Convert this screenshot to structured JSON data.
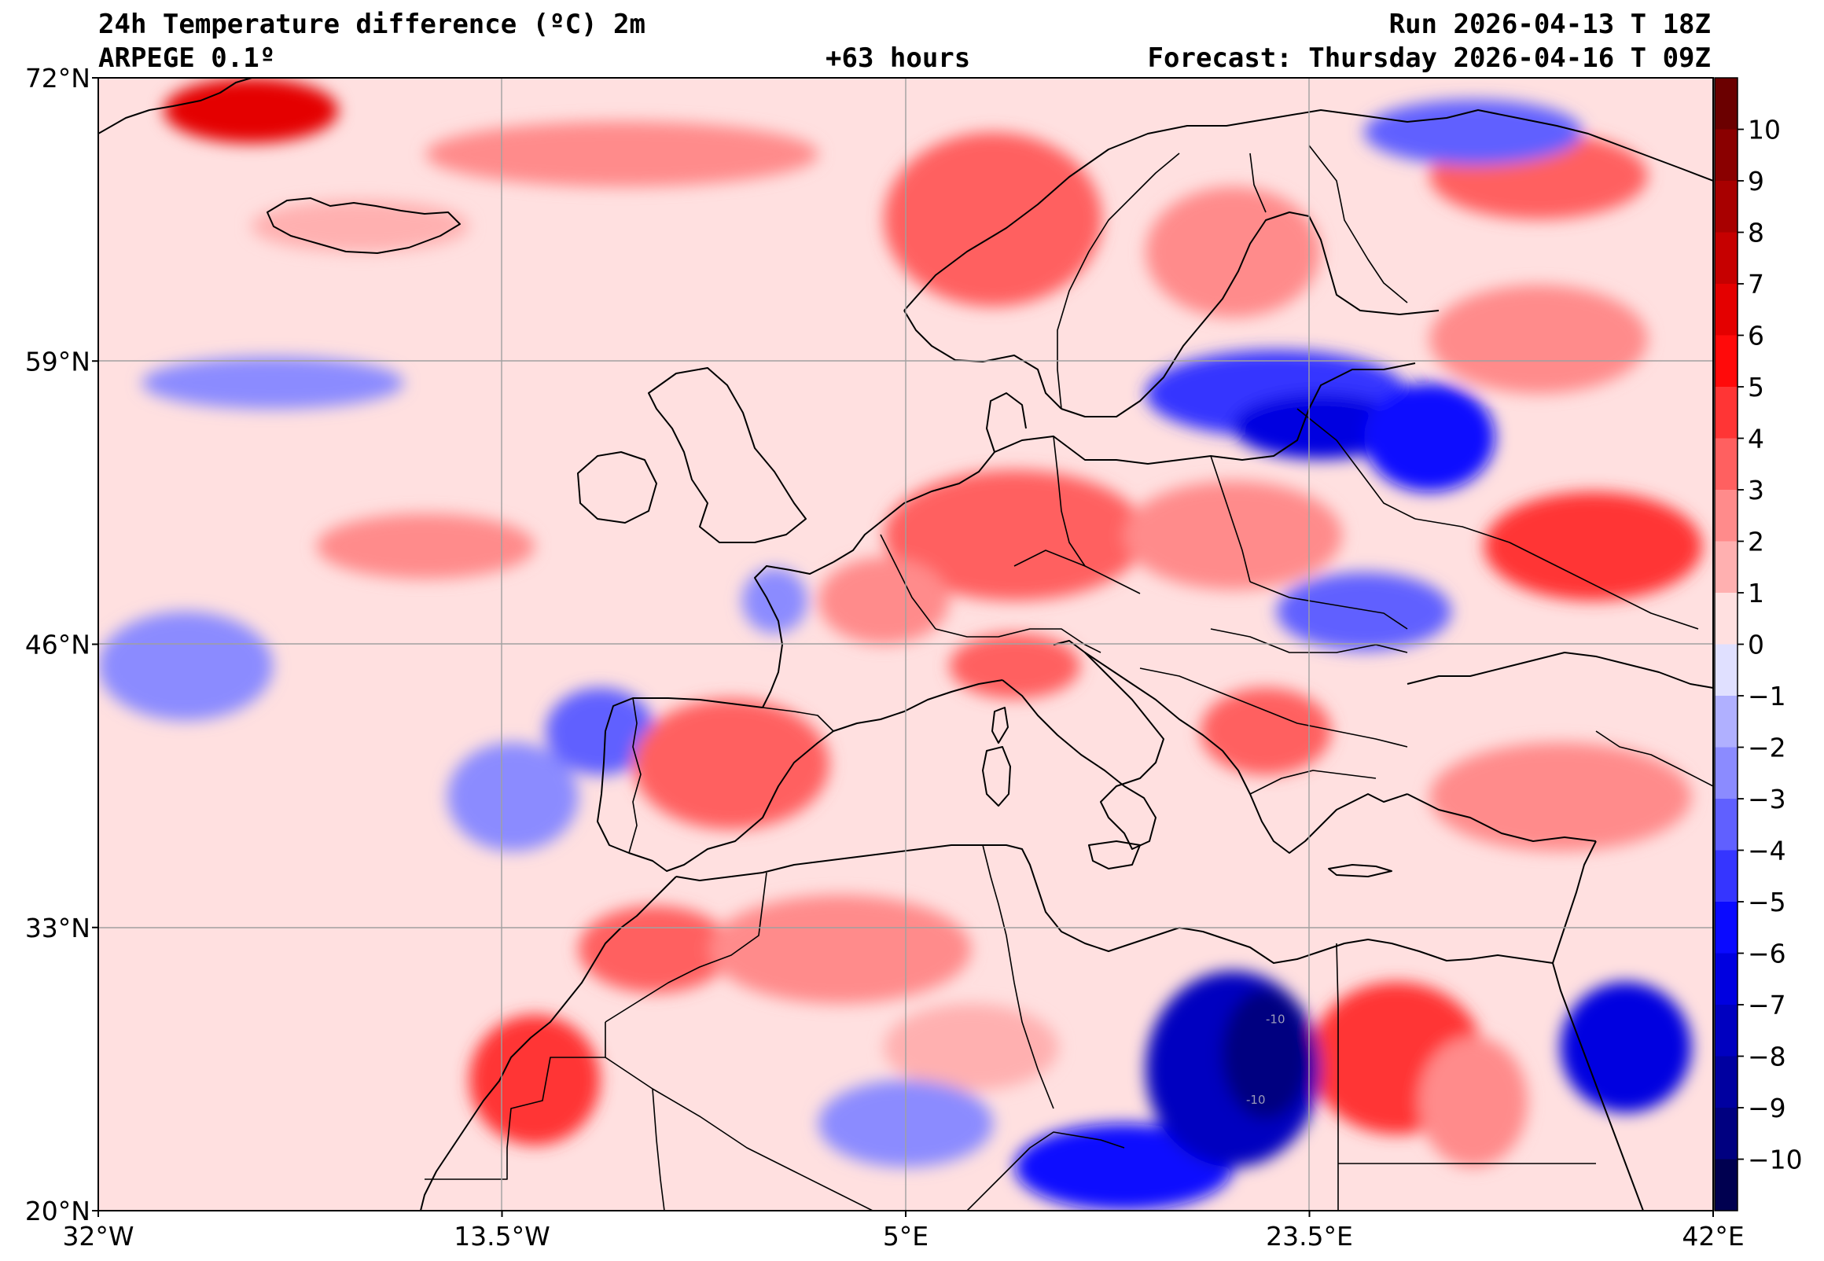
{
  "header": {
    "title": "24h Temperature difference (ºC) 2m",
    "model": "ARPEGE 0.1º",
    "lead_time": "+63 hours",
    "run": "Run 2026-04-13 T 18Z",
    "forecast": "Forecast: Thursday 2026-04-16 T 09Z"
  },
  "map": {
    "projection": "plate-carree",
    "lon_range": [
      -32,
      42
    ],
    "lat_range": [
      20,
      72
    ],
    "lat_ticks": [
      {
        "value": 72,
        "label": "72°N"
      },
      {
        "value": 59,
        "label": "59°N"
      },
      {
        "value": 46,
        "label": "46°N"
      },
      {
        "value": 33,
        "label": "33°N"
      },
      {
        "value": 20,
        "label": "20°N"
      }
    ],
    "lon_ticks": [
      {
        "value": -32,
        "label": "32°W"
      },
      {
        "value": -13.5,
        "label": "13.5°W"
      },
      {
        "value": 5,
        "label": "5°E"
      },
      {
        "value": 23.5,
        "label": "23.5°E"
      },
      {
        "value": 42,
        "label": "42°E"
      }
    ],
    "contour_labels": [
      {
        "text": "-10",
        "lon": 21.5,
        "lat": 28.6
      },
      {
        "text": "-10",
        "lon": 20.6,
        "lat": 24.9
      }
    ],
    "regions": [
      {
        "lon": -25,
        "lat": 70.5,
        "rx": 4,
        "ry": 1.5,
        "level": 6
      },
      {
        "lon": -20,
        "lat": 65.2,
        "rx": 5,
        "ry": 1.2,
        "level": 1
      },
      {
        "lon": -8,
        "lat": 68.5,
        "rx": 9,
        "ry": 1.5,
        "level": 2
      },
      {
        "lon": -24,
        "lat": 58,
        "rx": 6,
        "ry": 1.2,
        "level": -2
      },
      {
        "lon": -17,
        "lat": 50.5,
        "rx": 5,
        "ry": 1.5,
        "level": 2
      },
      {
        "lon": -28,
        "lat": 45,
        "rx": 4,
        "ry": 2.5,
        "level": -2
      },
      {
        "lon": -13,
        "lat": 39,
        "rx": 3,
        "ry": 2.5,
        "level": -2
      },
      {
        "lon": -9,
        "lat": 42,
        "rx": 2.5,
        "ry": 2,
        "level": -3
      },
      {
        "lon": 9,
        "lat": 65.5,
        "rx": 5,
        "ry": 4,
        "level": 3
      },
      {
        "lon": 20,
        "lat": 64,
        "rx": 4,
        "ry": 3,
        "level": 2
      },
      {
        "lon": 34,
        "lat": 67.5,
        "rx": 5,
        "ry": 2,
        "level": 3
      },
      {
        "lon": 31,
        "lat": 69.5,
        "rx": 5,
        "ry": 1.5,
        "level": -3
      },
      {
        "lon": 22,
        "lat": 57.5,
        "rx": 6,
        "ry": 2,
        "level": -4
      },
      {
        "lon": 24,
        "lat": 56,
        "rx": 4,
        "ry": 1.5,
        "level": -6
      },
      {
        "lon": 29,
        "lat": 55.5,
        "rx": 3,
        "ry": 2.5,
        "level": -5
      },
      {
        "lon": 34,
        "lat": 60,
        "rx": 5,
        "ry": 2.5,
        "level": 2
      },
      {
        "lon": 36.5,
        "lat": 50.5,
        "rx": 5,
        "ry": 2.5,
        "level": 4
      },
      {
        "lon": 10,
        "lat": 51,
        "rx": 6,
        "ry": 3,
        "level": 3
      },
      {
        "lon": 20,
        "lat": 51,
        "rx": 5,
        "ry": 2.5,
        "level": 2
      },
      {
        "lon": 26,
        "lat": 47.5,
        "rx": 4,
        "ry": 1.8,
        "level": -3
      },
      {
        "lon": 4,
        "lat": 48,
        "rx": 3,
        "ry": 2,
        "level": 2
      },
      {
        "lon": -1,
        "lat": 48,
        "rx": 1.5,
        "ry": 1.5,
        "level": -2
      },
      {
        "lon": -3,
        "lat": 40.5,
        "rx": 4.5,
        "ry": 3,
        "level": 3
      },
      {
        "lon": 10,
        "lat": 45,
        "rx": 3,
        "ry": 1.5,
        "level": 3
      },
      {
        "lon": 21.5,
        "lat": 42,
        "rx": 3,
        "ry": 2,
        "level": 3
      },
      {
        "lon": 35,
        "lat": 39,
        "rx": 6,
        "ry": 2.5,
        "level": 2
      },
      {
        "lon": -6.5,
        "lat": 32,
        "rx": 3.5,
        "ry": 2,
        "level": 3
      },
      {
        "lon": -12,
        "lat": 26,
        "rx": 3,
        "ry": 3,
        "level": 4
      },
      {
        "lon": 2,
        "lat": 32,
        "rx": 6,
        "ry": 2.5,
        "level": 2
      },
      {
        "lon": 8,
        "lat": 27.5,
        "rx": 4,
        "ry": 2,
        "level": 1
      },
      {
        "lon": 27.5,
        "lat": 27,
        "rx": 4,
        "ry": 3.5,
        "level": 4
      },
      {
        "lon": 31,
        "lat": 25,
        "rx": 2.5,
        "ry": 3,
        "level": 2
      },
      {
        "lon": 38,
        "lat": 27.5,
        "rx": 3,
        "ry": 3,
        "level": -6
      },
      {
        "lon": 5,
        "lat": 24,
        "rx": 4,
        "ry": 2,
        "level": -2
      },
      {
        "lon": 15,
        "lat": 22,
        "rx": 5,
        "ry": 2,
        "level": -5
      },
      {
        "lon": 20,
        "lat": 26.5,
        "rx": 4,
        "ry": 4.5,
        "level": -7
      },
      {
        "lon": 21.5,
        "lat": 27.2,
        "rx": 2,
        "ry": 3,
        "level": -9
      }
    ],
    "colorbar": {
      "min": -11,
      "max": 11,
      "levels": [
        {
          "value": 10,
          "label": "10"
        },
        {
          "value": 9,
          "label": "9"
        },
        {
          "value": 8,
          "label": "8"
        },
        {
          "value": 7,
          "label": "7"
        },
        {
          "value": 6,
          "label": "6"
        },
        {
          "value": 5,
          "label": "5"
        },
        {
          "value": 4,
          "label": "4"
        },
        {
          "value": 3,
          "label": "3"
        },
        {
          "value": 2,
          "label": "2"
        },
        {
          "value": 1,
          "label": "1"
        },
        {
          "value": 0,
          "label": "0"
        },
        {
          "value": -1,
          "label": "−1"
        },
        {
          "value": -2,
          "label": "−2"
        },
        {
          "value": -3,
          "label": "−3"
        },
        {
          "value": -4,
          "label": "−4"
        },
        {
          "value": -5,
          "label": "−5"
        },
        {
          "value": -6,
          "label": "−6"
        },
        {
          "value": -7,
          "label": "−7"
        },
        {
          "value": -8,
          "label": "−8"
        },
        {
          "value": -9,
          "label": "−9"
        },
        {
          "value": -10,
          "label": "−10"
        }
      ],
      "bands": [
        {
          "lo": 10,
          "hi": 11,
          "color": "#6b0000"
        },
        {
          "lo": 9,
          "hi": 10,
          "color": "#8a0000"
        },
        {
          "lo": 8,
          "hi": 9,
          "color": "#a80000"
        },
        {
          "lo": 7,
          "hi": 8,
          "color": "#c60000"
        },
        {
          "lo": 6,
          "hi": 7,
          "color": "#e40000"
        },
        {
          "lo": 5,
          "hi": 6,
          "color": "#ff0a0a"
        },
        {
          "lo": 4,
          "hi": 5,
          "color": "#ff3535"
        },
        {
          "lo": 3,
          "hi": 4,
          "color": "#ff6060"
        },
        {
          "lo": 2,
          "hi": 3,
          "color": "#ff8b8b"
        },
        {
          "lo": 1,
          "hi": 2,
          "color": "#ffb0b0"
        },
        {
          "lo": 0,
          "hi": 1,
          "color": "#ffe0e0"
        },
        {
          "lo": -1,
          "hi": 0,
          "color": "#e0e0ff"
        },
        {
          "lo": -2,
          "hi": -1,
          "color": "#b0b0ff"
        },
        {
          "lo": -3,
          "hi": -2,
          "color": "#8b8bff"
        },
        {
          "lo": -4,
          "hi": -3,
          "color": "#6060ff"
        },
        {
          "lo": -5,
          "hi": -4,
          "color": "#3535ff"
        },
        {
          "lo": -6,
          "hi": -5,
          "color": "#0a0aff"
        },
        {
          "lo": -7,
          "hi": -6,
          "color": "#0000e0"
        },
        {
          "lo": -8,
          "hi": -7,
          "color": "#0000c0"
        },
        {
          "lo": -9,
          "hi": -8,
          "color": "#0000a0"
        },
        {
          "lo": -10,
          "hi": -9,
          "color": "#000080"
        },
        {
          "lo": -11,
          "hi": -10,
          "color": "#000050"
        }
      ]
    }
  }
}
